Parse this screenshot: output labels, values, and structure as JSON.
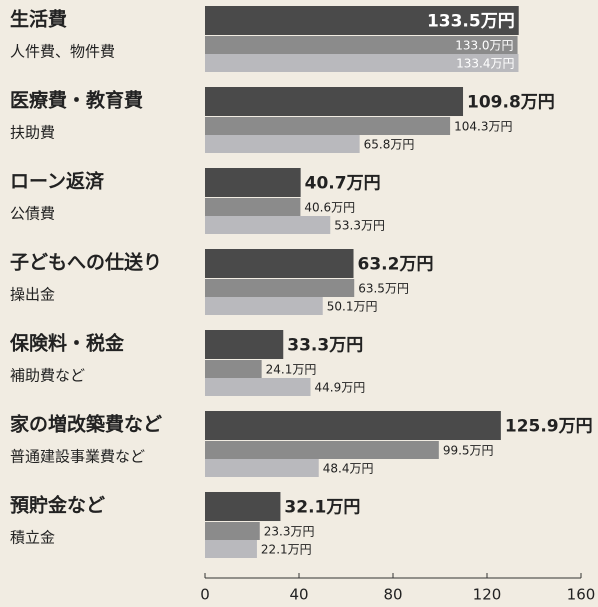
{
  "chart_data": {
    "type": "bar",
    "orientation": "horizontal",
    "categories": [
      "生活費",
      "医療費・教育費",
      "ローン返済",
      "子どもへの仕送り",
      "保険料・税金",
      "家の増改築費など",
      "預貯金など"
    ],
    "sublabels": [
      "人件費、物件費",
      "扶助費",
      "公債費",
      "操出金",
      "補助費など",
      "普通建設事業費など",
      "積立金"
    ],
    "series": [
      {
        "color": "#4a4a4a",
        "values": [
          133.5,
          109.8,
          40.7,
          63.2,
          33.3,
          125.9,
          32.1
        ],
        "value_labels": [
          "133.5万円",
          "109.8万円",
          "40.7万円",
          "63.2万円",
          "33.3万円",
          "125.9万円",
          "32.1万円"
        ]
      },
      {
        "color": "#8b8b8b",
        "values": [
          133.0,
          104.3,
          40.6,
          63.5,
          24.1,
          99.5,
          23.3
        ],
        "value_labels": [
          "133.0万円",
          "104.3万円",
          "40.6万円",
          "63.5万円",
          "24.1万円",
          "99.5万円",
          "23.3万円"
        ]
      },
      {
        "color": "#b9b9bd",
        "values": [
          133.4,
          65.8,
          53.3,
          50.1,
          44.9,
          48.4,
          22.1
        ],
        "value_labels": [
          "133.4万円",
          "65.8万円",
          "53.3万円",
          "50.1万円",
          "44.9万円",
          "48.4万円",
          "22.1万円"
        ]
      }
    ],
    "xlim": [
      0,
      160
    ],
    "xticks": [
      0,
      40,
      80,
      120,
      160
    ]
  }
}
